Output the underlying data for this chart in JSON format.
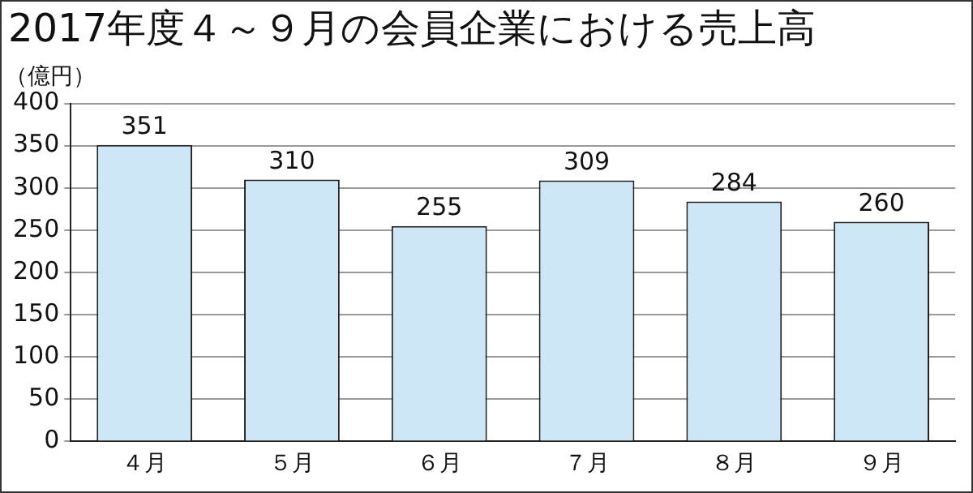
{
  "chart_data": {
    "type": "bar",
    "title": "2017年度４～９月の会員企業における売上高",
    "ylabel": "（億円）",
    "categories": [
      "４月",
      "５月",
      "６月",
      "７月",
      "８月",
      "９月"
    ],
    "values": [
      351,
      310,
      255,
      309,
      284,
      260
    ],
    "color": "#cde7f6",
    "ylim": [
      0,
      400
    ],
    "yticks": [
      0,
      50,
      100,
      150,
      200,
      250,
      300,
      350,
      400
    ],
    "grid": "y",
    "data_labels": true
  }
}
